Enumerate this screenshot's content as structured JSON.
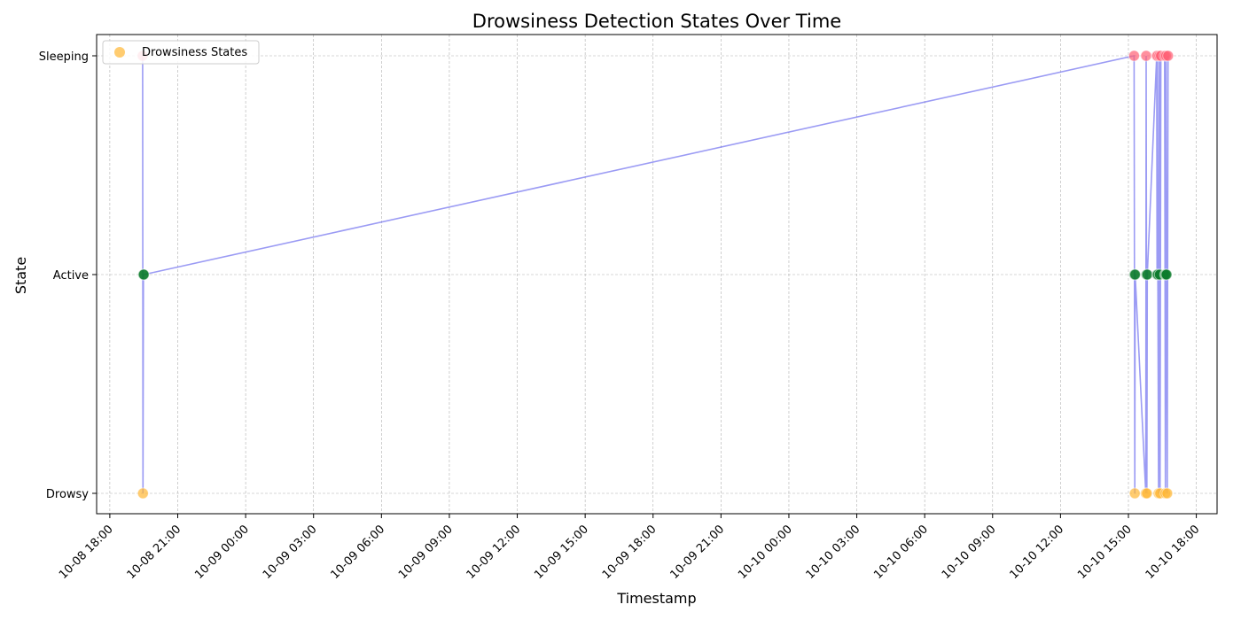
{
  "chart_data": {
    "type": "scatter",
    "title": "Drowsiness Detection States Over Time",
    "xlabel": "Timestamp",
    "ylabel": "State",
    "categories_y": [
      "Drowsy",
      "Active",
      "Sleeping"
    ],
    "x_ticks": [
      "10-08 18:00",
      "10-08 21:00",
      "10-09 00:00",
      "10-09 03:00",
      "10-09 06:00",
      "10-09 09:00",
      "10-09 12:00",
      "10-09 15:00",
      "10-09 18:00",
      "10-09 21:00",
      "10-10 00:00",
      "10-10 03:00",
      "10-10 06:00",
      "10-10 09:00",
      "10-10 12:00",
      "10-10 15:00",
      "10-10 18:00"
    ],
    "xlim": [
      "2024-10-08 17:25",
      "2024-10-10 18:55"
    ],
    "grid": true,
    "legend": {
      "position": "top-left",
      "entries": [
        "Drowsiness States"
      ]
    },
    "series": [
      {
        "name": "Drowsiness States",
        "line_color": "#6666ee",
        "state_colors": {
          "Drowsy": "#ffb733",
          "Active": "#0a7a2a",
          "Sleeping": "#ff5f75"
        },
        "points": [
          {
            "x": "2024-10-08 19:27",
            "state": "Sleeping"
          },
          {
            "x": "2024-10-08 19:28",
            "state": "Drowsy"
          },
          {
            "x": "2024-10-08 19:29",
            "state": "Active"
          },
          {
            "x": "2024-10-08 19:30",
            "state": "Active"
          },
          {
            "x": "2024-10-10 15:15",
            "state": "Sleeping"
          },
          {
            "x": "2024-10-10 15:16",
            "state": "Active"
          },
          {
            "x": "2024-10-10 15:17",
            "state": "Drowsy"
          },
          {
            "x": "2024-10-10 15:18",
            "state": "Active"
          },
          {
            "x": "2024-10-10 15:46",
            "state": "Drowsy"
          },
          {
            "x": "2024-10-10 15:47",
            "state": "Sleeping"
          },
          {
            "x": "2024-10-10 15:48",
            "state": "Active"
          },
          {
            "x": "2024-10-10 15:49",
            "state": "Drowsy"
          },
          {
            "x": "2024-10-10 15:50",
            "state": "Active"
          },
          {
            "x": "2024-10-10 16:15",
            "state": "Sleeping"
          },
          {
            "x": "2024-10-10 16:16",
            "state": "Active"
          },
          {
            "x": "2024-10-10 16:17",
            "state": "Sleeping"
          },
          {
            "x": "2024-10-10 16:18",
            "state": "Active"
          },
          {
            "x": "2024-10-10 16:20",
            "state": "Drowsy"
          },
          {
            "x": "2024-10-10 16:22",
            "state": "Sleeping"
          },
          {
            "x": "2024-10-10 16:23",
            "state": "Active"
          },
          {
            "x": "2024-10-10 16:24",
            "state": "Drowsy"
          },
          {
            "x": "2024-10-10 16:26",
            "state": "Sleeping"
          },
          {
            "x": "2024-10-10 16:36",
            "state": "Sleeping"
          },
          {
            "x": "2024-10-10 16:37",
            "state": "Active"
          },
          {
            "x": "2024-10-10 16:38",
            "state": "Drowsy"
          },
          {
            "x": "2024-10-10 16:39",
            "state": "Active"
          },
          {
            "x": "2024-10-10 16:40",
            "state": "Sleeping"
          },
          {
            "x": "2024-10-10 16:41",
            "state": "Active"
          },
          {
            "x": "2024-10-10 16:43",
            "state": "Drowsy"
          },
          {
            "x": "2024-10-10 16:45",
            "state": "Sleeping"
          }
        ]
      }
    ]
  }
}
